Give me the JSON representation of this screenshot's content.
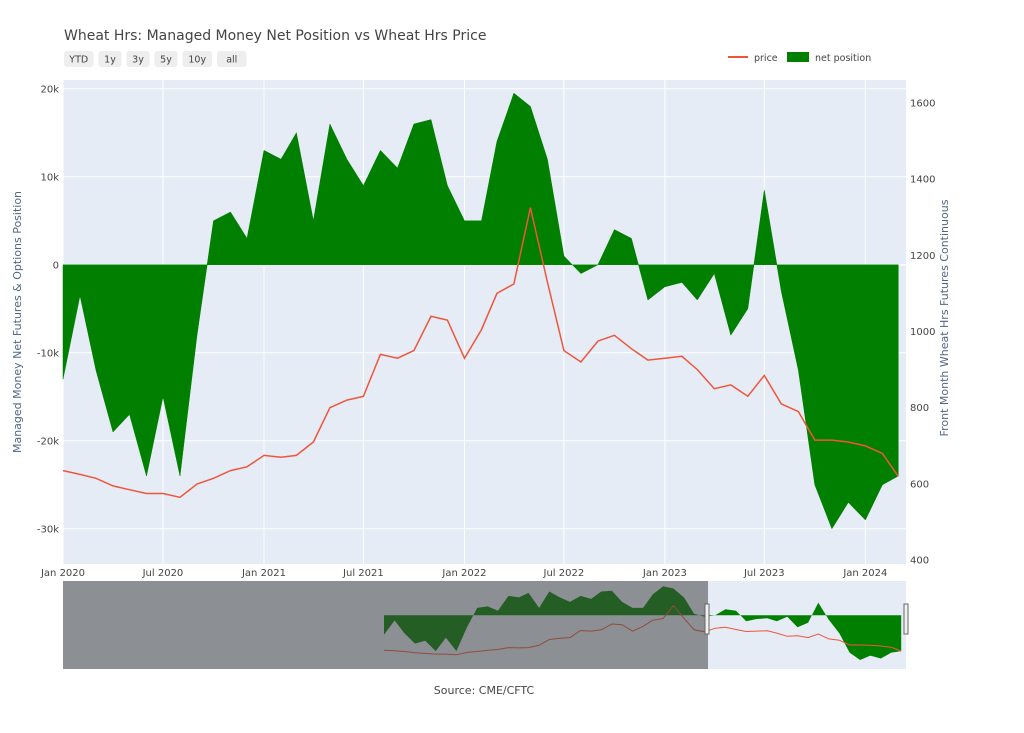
{
  "chart_data": {
    "type": "area",
    "title": "Wheat Hrs: Managed Money Net Position vs Wheat Hrs Price",
    "range_buttons": [
      "YTD",
      "1y",
      "3y",
      "5y",
      "10y",
      "all"
    ],
    "xaxis": {
      "ticks": [
        "Jan 2020",
        "Jul 2020",
        "Jan 2021",
        "Jul 2021",
        "Jan 2022",
        "Jul 2022",
        "Jan 2023",
        "Jul 2023",
        "Jan 2024"
      ],
      "range": [
        "2020-01-01",
        "2024-03-15"
      ]
    },
    "yaxis_left": {
      "label": "Managed Money Net Futures & Options Position",
      "range": [
        -34000,
        21000
      ],
      "ticks": [
        20000,
        10000,
        0,
        -10000,
        -20000,
        -30000
      ],
      "tick_labels": [
        "20k",
        "10k",
        "0",
        "-10k",
        "-20k",
        "-30k"
      ]
    },
    "yaxis_right": {
      "label": "Front Month Wheat Hrs Futures Continuous",
      "range": [
        390,
        1660
      ],
      "ticks": [
        1600,
        1400,
        1200,
        1000,
        800,
        600,
        400
      ],
      "tick_labels": [
        "1600",
        "1400",
        "1200",
        "1000",
        "800",
        "600",
        "400"
      ]
    },
    "legend_position": "top-right",
    "grid": true,
    "series": [
      {
        "name": "price",
        "type": "line",
        "axis": "right",
        "color": "#ef553b",
        "points": [
          [
            "2020-01-01",
            635
          ],
          [
            "2020-02-01",
            625
          ],
          [
            "2020-03-01",
            615
          ],
          [
            "2020-04-01",
            595
          ],
          [
            "2020-05-01",
            585
          ],
          [
            "2020-06-01",
            575
          ],
          [
            "2020-07-01",
            575
          ],
          [
            "2020-08-01",
            565
          ],
          [
            "2020-09-01",
            600
          ],
          [
            "2020-10-01",
            615
          ],
          [
            "2020-11-01",
            635
          ],
          [
            "2020-12-01",
            645
          ],
          [
            "2021-01-01",
            675
          ],
          [
            "2021-02-01",
            670
          ],
          [
            "2021-03-01",
            675
          ],
          [
            "2021-04-01",
            710
          ],
          [
            "2021-05-01",
            800
          ],
          [
            "2021-06-01",
            820
          ],
          [
            "2021-07-01",
            830
          ],
          [
            "2021-08-01",
            940
          ],
          [
            "2021-09-01",
            930
          ],
          [
            "2021-10-01",
            950
          ],
          [
            "2021-11-01",
            1040
          ],
          [
            "2021-12-01",
            1030
          ],
          [
            "2022-01-01",
            930
          ],
          [
            "2022-02-01",
            1005
          ],
          [
            "2022-03-01",
            1100
          ],
          [
            "2022-04-01",
            1125
          ],
          [
            "2022-05-01",
            1325
          ],
          [
            "2022-06-01",
            1130
          ],
          [
            "2022-07-01",
            950
          ],
          [
            "2022-08-01",
            920
          ],
          [
            "2022-09-01",
            975
          ],
          [
            "2022-10-01",
            990
          ],
          [
            "2022-11-01",
            955
          ],
          [
            "2022-12-01",
            925
          ],
          [
            "2023-01-01",
            930
          ],
          [
            "2023-02-01",
            935
          ],
          [
            "2023-03-01",
            900
          ],
          [
            "2023-04-01",
            850
          ],
          [
            "2023-05-01",
            860
          ],
          [
            "2023-06-01",
            830
          ],
          [
            "2023-07-01",
            885
          ],
          [
            "2023-08-01",
            810
          ],
          [
            "2023-09-01",
            790
          ],
          [
            "2023-10-01",
            715
          ],
          [
            "2023-11-01",
            715
          ],
          [
            "2023-12-01",
            710
          ],
          [
            "2024-01-01",
            700
          ],
          [
            "2024-02-01",
            680
          ],
          [
            "2024-03-01",
            620
          ]
        ]
      },
      {
        "name": "net position",
        "type": "area",
        "axis": "left",
        "color": "#007f00",
        "points": [
          [
            "2020-01-01",
            -13000
          ],
          [
            "2020-02-01",
            -3500
          ],
          [
            "2020-03-01",
            -12000
          ],
          [
            "2020-04-01",
            -19000
          ],
          [
            "2020-05-01",
            -17000
          ],
          [
            "2020-06-01",
            -24000
          ],
          [
            "2020-07-01",
            -15000
          ],
          [
            "2020-08-01",
            -24000
          ],
          [
            "2020-09-01",
            -8000
          ],
          [
            "2020-10-01",
            5000
          ],
          [
            "2020-11-01",
            6000
          ],
          [
            "2020-12-01",
            3000
          ],
          [
            "2021-01-01",
            13000
          ],
          [
            "2021-02-01",
            12000
          ],
          [
            "2021-03-01",
            15000
          ],
          [
            "2021-04-01",
            5000
          ],
          [
            "2021-05-01",
            16000
          ],
          [
            "2021-06-01",
            12000
          ],
          [
            "2021-07-01",
            9000
          ],
          [
            "2021-08-01",
            13000
          ],
          [
            "2021-09-01",
            11000
          ],
          [
            "2021-10-01",
            16000
          ],
          [
            "2021-11-01",
            16500
          ],
          [
            "2021-12-01",
            9000
          ],
          [
            "2022-01-01",
            5000
          ],
          [
            "2022-02-01",
            5000
          ],
          [
            "2022-03-01",
            14000
          ],
          [
            "2022-04-01",
            19500
          ],
          [
            "2022-05-01",
            18000
          ],
          [
            "2022-06-01",
            12000
          ],
          [
            "2022-07-01",
            1000
          ],
          [
            "2022-08-01",
            -1000
          ],
          [
            "2022-09-01",
            0
          ],
          [
            "2022-10-01",
            4000
          ],
          [
            "2022-11-01",
            3000
          ],
          [
            "2022-12-01",
            -4000
          ],
          [
            "2023-01-01",
            -2500
          ],
          [
            "2023-02-01",
            -2000
          ],
          [
            "2023-03-01",
            -4000
          ],
          [
            "2023-04-01",
            -1000
          ],
          [
            "2023-05-01",
            -8000
          ],
          [
            "2023-06-01",
            -5000
          ],
          [
            "2023-07-01",
            8500
          ],
          [
            "2023-08-01",
            -3000
          ],
          [
            "2023-09-01",
            -12000
          ],
          [
            "2023-10-01",
            -25000
          ],
          [
            "2023-11-01",
            -30000
          ],
          [
            "2023-12-01",
            -27000
          ],
          [
            "2024-01-01",
            -29000
          ],
          [
            "2024-02-01",
            -25000
          ],
          [
            "2024-03-01",
            -24000
          ]
        ]
      }
    ],
    "source_note": "Source: CME/CFTC"
  }
}
